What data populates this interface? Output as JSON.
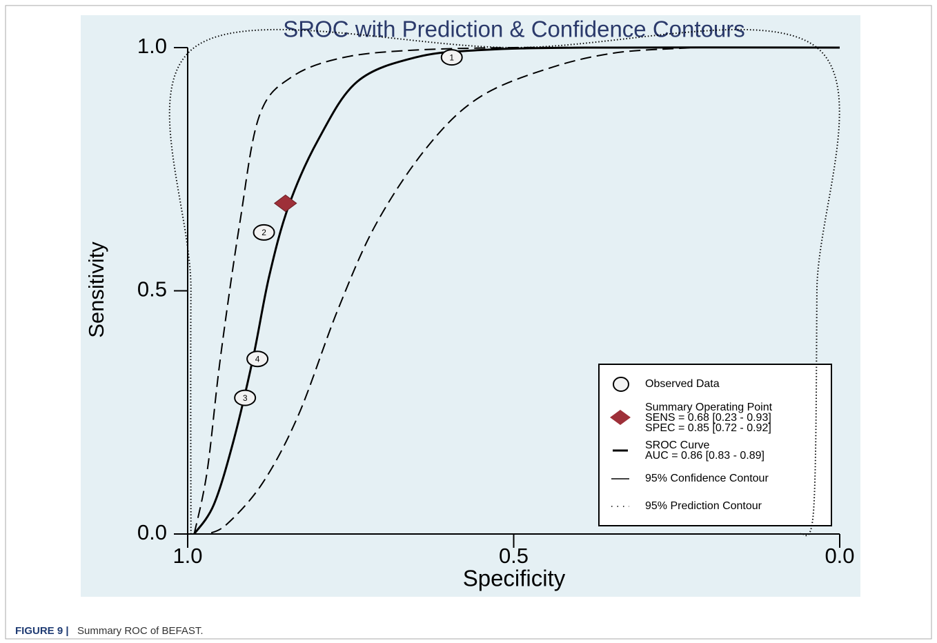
{
  "chart_data": {
    "type": "sroc",
    "title": "SROC with Prediction & Confidence Contours",
    "xlabel": "Specificity",
    "ylabel": "Sensitivity",
    "xlim": [
      1,
      0
    ],
    "ylim": [
      0,
      1
    ],
    "xticks": [
      {
        "value": 1,
        "label": "1.0"
      },
      0.5,
      {
        "value": 0,
        "label": "0.0"
      }
    ],
    "yticks": [
      {
        "value": 0,
        "label": "0.0"
      },
      0.5,
      {
        "value": 1,
        "label": "1.0"
      }
    ],
    "observed": {
      "name": "Observed Data",
      "labels": [
        "1",
        "2",
        "3",
        "4"
      ],
      "x": [
        0.595,
        0.883,
        0.912,
        0.893
      ],
      "y": [
        0.98,
        0.62,
        0.28,
        0.36
      ]
    },
    "summary": {
      "lines": [
        "Summary Operating Point",
        "SENS = 0.68 [0.23 - 0.93]",
        "SPEC = 0.85 [0.72 - 0.92]"
      ],
      "x": 0.85,
      "y": 0.68,
      "color": "#9e3039"
    },
    "sroc": {
      "lines": [
        "SROC Curve",
        "AUC = 0.86 [0.83 - 0.89]"
      ],
      "x": [
        0.99,
        0.96,
        0.93,
        0.9,
        0.875,
        0.845,
        0.8,
        0.74,
        0.65,
        0.55,
        0.39,
        0
      ],
      "y": [
        0,
        0.06,
        0.19,
        0.36,
        0.53,
        0.675,
        0.81,
        0.93,
        0.98,
        0.995,
        1,
        1
      ]
    },
    "confidence": {
      "name": "95% Confidence Contour",
      "x": [
        0.99,
        0.97,
        0.95,
        0.92,
        0.89,
        0.84,
        0.76,
        0.65,
        0.5,
        0.35,
        0.23,
        0.34,
        0.44,
        0.55,
        0.63,
        0.71,
        0.77,
        0.83,
        0.885,
        0.94,
        0.97
      ],
      "y": [
        0,
        0.13,
        0.36,
        0.64,
        0.86,
        0.94,
        0.98,
        0.995,
        1,
        1,
        1,
        0.99,
        0.96,
        0.9,
        0.8,
        0.64,
        0.46,
        0.245,
        0.105,
        0.02,
        0
      ]
    },
    "prediction": {
      "name": "95% Prediction Contour",
      "x": [
        0.995,
        0.995,
        0.99,
        0.5,
        0.035,
        0.035,
        0.04,
        0.06
      ],
      "y": [
        0,
        0.5,
        1,
        1,
        1,
        0.5,
        0.05,
        0
      ]
    }
  },
  "caption_label": "FIGURE 9 |",
  "caption_text": "Summary ROC of BEFAST."
}
